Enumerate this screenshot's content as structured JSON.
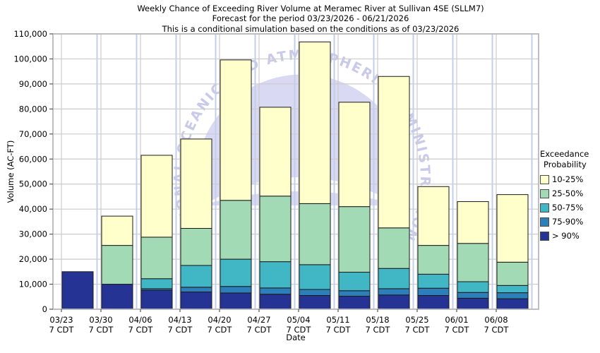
{
  "chart_data": {
    "type": "bar",
    "stacked": true,
    "title": "Weekly Chance of Exceeding River Volume at Meramec River at Sullivan 4SE (SLLM7)",
    "subtitle": "Forecast for the period 03/23/2026 - 06/21/2026",
    "subtitle2": "This is a conditional simulation based on the conditions as of 03/23/2026",
    "xlabel": "Date",
    "ylabel": "Volume (AC-FT)",
    "ylim": [
      0,
      110000
    ],
    "ytick_step": 10000,
    "grid": true,
    "categories": [
      "03/23",
      "03/30",
      "04/06",
      "04/13",
      "04/20",
      "04/27",
      "05/04",
      "05/11",
      "05/18",
      "05/25",
      "06/01",
      "06/08"
    ],
    "tick_sublabel": "7 CDT",
    "legend": {
      "title_lines": [
        "Exceedance",
        "Probability"
      ],
      "position": "right"
    },
    "series": [
      {
        "name": "> 90%",
        "color": "#253494",
        "values": [
          15000,
          10000,
          7600,
          6900,
          6500,
          6000,
          5500,
          5200,
          5700,
          5500,
          4400,
          4200
        ]
      },
      {
        "name": "75-90%",
        "color": "#2C7FB8",
        "values": [
          0,
          0,
          600,
          1900,
          2600,
          2500,
          2400,
          2200,
          2500,
          2900,
          2300,
          2400
        ]
      },
      {
        "name": "50-75%",
        "color": "#41B6C4",
        "values": [
          0,
          0,
          4000,
          8700,
          10900,
          10500,
          9900,
          7400,
          8100,
          5600,
          4300,
          2900
        ]
      },
      {
        "name": "25-50%",
        "color": "#A1DAB4",
        "values": [
          0,
          15500,
          16600,
          14800,
          23500,
          26200,
          24400,
          26200,
          16200,
          11500,
          15300,
          9300
        ]
      },
      {
        "name": "10-25%",
        "color": "#FFFFCC",
        "values": [
          0,
          11700,
          32700,
          35700,
          56100,
          35500,
          64600,
          41700,
          60500,
          23500,
          16700,
          27000
        ]
      }
    ],
    "totals": [
      15000,
      37200,
      61500,
      68000,
      99600,
      80700,
      106800,
      82700,
      93000,
      49000,
      43000,
      45800
    ],
    "watermark": {
      "text": "NATIONAL OCEANIC AND ATMOSPHERIC ADMINISTRATION",
      "text_color": "#c9c9ea",
      "fill_color": "#d9d9f3"
    },
    "colors": {
      "bar_border": "#1a1a1a",
      "gridline": "#cccccc",
      "frame": "#b8b8b8",
      "gap_line": "#c3cfe8",
      "tick": "#555555"
    }
  }
}
